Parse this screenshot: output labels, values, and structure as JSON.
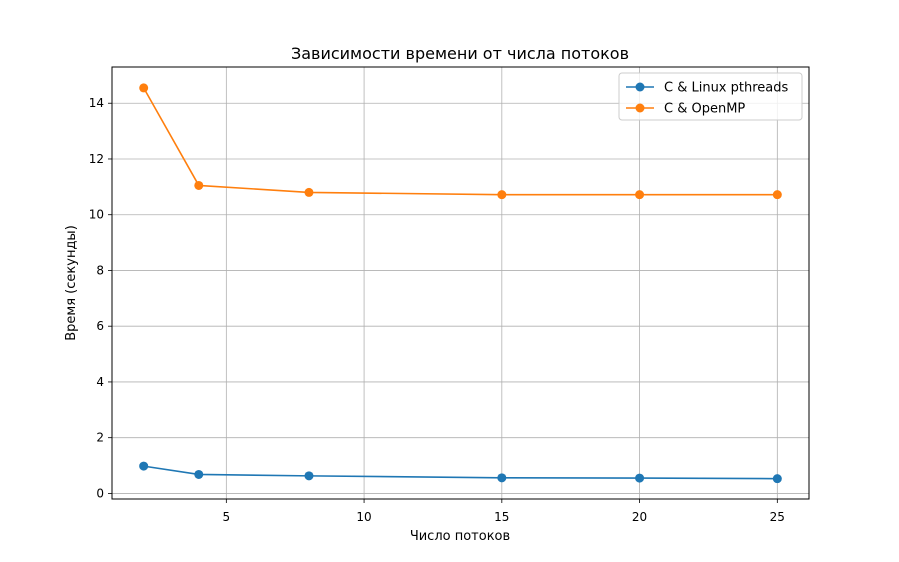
{
  "chart_data": {
    "type": "line",
    "title": "Зависимости времени от числа потоков",
    "xlabel": "Число потоков",
    "ylabel": "Время (секунды)",
    "xlim": [
      0.85,
      26.15
    ],
    "ylim": [
      -0.2,
      15.3
    ],
    "xticks": [
      5,
      10,
      15,
      20,
      25
    ],
    "yticks": [
      0,
      2,
      4,
      6,
      8,
      10,
      12,
      14
    ],
    "grid": true,
    "legend_position": "top-right",
    "x": [
      2,
      4,
      8,
      15,
      20,
      25
    ],
    "series": [
      {
        "name": "C & Linux pthreads",
        "color": "#1f77b4",
        "marker": "circle",
        "values": [
          0.98,
          0.68,
          0.63,
          0.56,
          0.55,
          0.53
        ]
      },
      {
        "name": "C & OpenMP",
        "color": "#ff7f0e",
        "marker": "circle",
        "values": [
          14.55,
          11.05,
          10.8,
          10.72,
          10.72,
          10.72
        ]
      }
    ]
  }
}
